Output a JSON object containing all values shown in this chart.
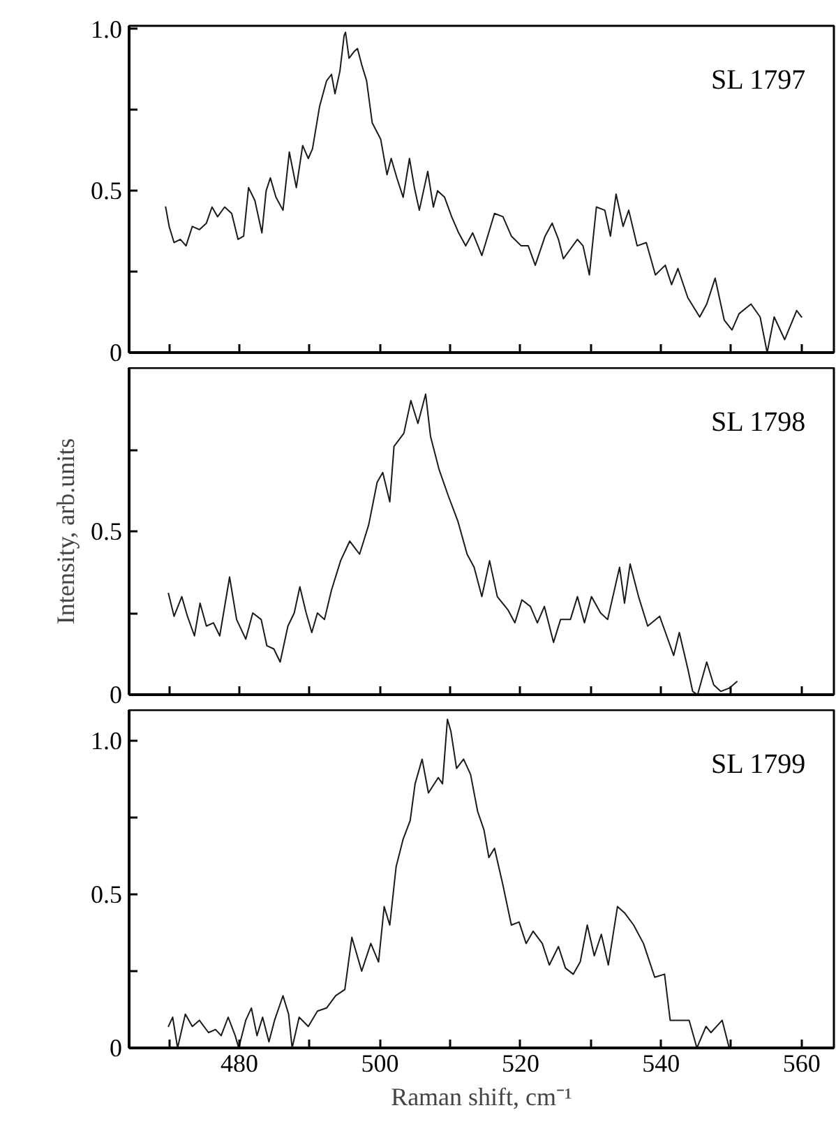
{
  "chart_data": [
    {
      "type": "line",
      "annotations": [
        "SL 1797"
      ],
      "tick_labels": "y",
      "grid": false,
      "x": [
        469.5,
        470,
        470.7,
        471.6,
        472.4,
        473.3,
        474.3,
        475.3,
        476.1,
        476.9,
        477.9,
        478.9,
        479.8,
        480.6,
        481.3,
        482.2,
        483.2,
        483.8,
        484.4,
        485.2,
        486.2,
        487.1,
        488.1,
        489,
        489.8,
        490.4,
        491.4,
        492.4,
        493.1,
        493.6,
        494.3,
        494.9,
        495.1,
        495.6,
        496.3,
        496.8,
        497.4,
        498.1,
        498.9,
        500.1,
        501,
        501.6,
        502.4,
        503.3,
        504.2,
        504.9,
        505.6,
        506.8,
        507.6,
        508.2,
        509.2,
        510.2,
        511.2,
        512.2,
        513.2,
        514.5,
        516.3,
        517.5,
        518.7,
        520.1,
        521.1,
        522.1,
        523.5,
        524.5,
        525.4,
        526.1,
        527.1,
        528.1,
        528.9,
        529.8,
        530.8,
        532,
        532.8,
        533.6,
        534.6,
        535.4,
        536.6,
        537.9,
        539.2,
        540.6,
        541.5,
        542.4,
        543.8,
        545.5,
        546.5,
        547.7,
        549,
        550.1,
        551.1,
        552.8,
        554.1,
        555.1,
        556.1,
        557.6,
        559.3,
        560
      ],
      "series": [
        {
          "color": "#1a1a1a",
          "values": [
            0.45,
            0.39,
            0.34,
            0.35,
            0.33,
            0.39,
            0.38,
            0.4,
            0.45,
            0.42,
            0.45,
            0.43,
            0.35,
            0.36,
            0.51,
            0.47,
            0.37,
            0.5,
            0.54,
            0.48,
            0.44,
            0.62,
            0.51,
            0.64,
            0.6,
            0.63,
            0.76,
            0.84,
            0.86,
            0.8,
            0.87,
            0.98,
            0.99,
            0.91,
            0.93,
            0.94,
            0.89,
            0.84,
            0.71,
            0.66,
            0.55,
            0.6,
            0.54,
            0.48,
            0.6,
            0.51,
            0.44,
            0.56,
            0.45,
            0.5,
            0.48,
            0.42,
            0.37,
            0.33,
            0.37,
            0.3,
            0.43,
            0.42,
            0.36,
            0.33,
            0.33,
            0.27,
            0.36,
            0.4,
            0.35,
            0.29,
            0.32,
            0.35,
            0.33,
            0.24,
            0.45,
            0.44,
            0.36,
            0.49,
            0.39,
            0.44,
            0.33,
            0.34,
            0.24,
            0.27,
            0.21,
            0.26,
            0.17,
            0.11,
            0.15,
            0.23,
            0.1,
            0.07,
            0.12,
            0.15,
            0.11,
            0,
            0.11,
            0.04,
            0.13,
            0.11
          ]
        }
      ],
      "xlim": [
        464.3,
        564.6
      ],
      "ylim": [
        0,
        1.01
      ],
      "xticks": [
        {
          "value": 470,
          "label": null
        },
        480,
        {
          "value": 490,
          "label": null
        },
        500,
        {
          "value": 510,
          "label": null
        },
        520,
        {
          "value": 530,
          "label": null
        },
        540,
        {
          "value": 550,
          "label": null
        },
        560
      ],
      "yticks": [
        0,
        {
          "value": 0.25,
          "label": null
        },
        0.5,
        {
          "value": 0.75,
          "label": null
        },
        {
          "value": 1,
          "label": "1.0"
        }
      ]
    },
    {
      "type": "line",
      "annotations": [
        "SL 1798"
      ],
      "tick_labels": "y",
      "grid": false,
      "ylabel": "Intensity, arb.units",
      "x": [
        469.9,
        470.7,
        471.8,
        472.6,
        473.6,
        474.4,
        475.3,
        476.3,
        477.2,
        478.6,
        479.6,
        480.9,
        481.9,
        483.1,
        483.9,
        484.9,
        485.8,
        486.9,
        487.8,
        488.6,
        489.5,
        490.3,
        491.1,
        492.1,
        493.1,
        494.4,
        495.7,
        497.1,
        498.4,
        499.6,
        500.4,
        501.4,
        502,
        503.4,
        504.4,
        505.4,
        506.5,
        507.2,
        508.4,
        509.7,
        511.1,
        512.4,
        513.4,
        514.5,
        515.6,
        516.7,
        518.2,
        519.2,
        520.2,
        521.4,
        522.4,
        523.4,
        524.7,
        525.7,
        527.1,
        528.1,
        529.1,
        530.1,
        531.4,
        532.4,
        534.1,
        534.8,
        535.6,
        536.8,
        538.1,
        539.8,
        540.8,
        541.8,
        542.6,
        543.8,
        544.5,
        545.2,
        546.5,
        547.5,
        548.5,
        549.7,
        550.8
      ],
      "series": [
        {
          "color": "#1a1a1a",
          "values": [
            0.31,
            0.24,
            0.3,
            0.24,
            0.18,
            0.28,
            0.21,
            0.22,
            0.18,
            0.36,
            0.23,
            0.17,
            0.25,
            0.23,
            0.15,
            0.14,
            0.1,
            0.21,
            0.25,
            0.33,
            0.25,
            0.19,
            0.25,
            0.23,
            0.32,
            0.41,
            0.47,
            0.43,
            0.52,
            0.65,
            0.68,
            0.59,
            0.76,
            0.8,
            0.9,
            0.83,
            0.92,
            0.79,
            0.69,
            0.61,
            0.53,
            0.43,
            0.39,
            0.3,
            0.41,
            0.3,
            0.26,
            0.22,
            0.29,
            0.27,
            0.22,
            0.27,
            0.16,
            0.23,
            0.23,
            0.3,
            0.22,
            0.3,
            0.25,
            0.23,
            0.39,
            0.28,
            0.4,
            0.3,
            0.21,
            0.24,
            0.18,
            0.12,
            0.19,
            0.08,
            0.01,
            0,
            0.1,
            0.03,
            0.01,
            0.02,
            0.04
          ]
        }
      ],
      "xlim": [
        464.3,
        564.6
      ],
      "ylim": [
        0,
        1.0
      ],
      "xticks": [
        {
          "value": 470,
          "label": null
        },
        480,
        {
          "value": 490,
          "label": null
        },
        500,
        {
          "value": 510,
          "label": null
        },
        520,
        {
          "value": 530,
          "label": null
        },
        540,
        {
          "value": 550,
          "label": null
        },
        560
      ],
      "yticks": [
        0,
        {
          "value": 0.25,
          "label": null
        },
        0.5,
        {
          "value": 0.75,
          "label": null
        }
      ]
    },
    {
      "type": "line",
      "annotations": [
        "SL 1799"
      ],
      "grid": false,
      "xlabel": "Raman shift, cm⁻¹",
      "x": [
        469.9,
        470.5,
        471.2,
        472.3,
        473.3,
        474.3,
        475.6,
        476.6,
        477.4,
        478.4,
        479.4,
        479.9,
        480.9,
        481.7,
        482.5,
        483.3,
        484.2,
        485,
        486.2,
        487,
        487.5,
        488.5,
        489.8,
        491.1,
        492.4,
        493.7,
        495,
        496,
        497.4,
        498.7,
        499.8,
        500.6,
        501.4,
        502.3,
        503.3,
        504.3,
        505,
        506,
        506.9,
        508.3,
        508.9,
        509.6,
        510.1,
        510.9,
        511.9,
        512.9,
        513.9,
        514.8,
        515.5,
        516.3,
        517.5,
        518.7,
        519.8,
        520.8,
        521.8,
        523.1,
        524.1,
        525.4,
        526.4,
        527.5,
        528.5,
        529.5,
        530.5,
        531.5,
        532.5,
        533.8,
        534.8,
        536.1,
        537.5,
        539.1,
        540.5,
        541.3,
        542.5,
        544,
        545.1,
        546.4,
        547.1,
        548.7,
        549.7
      ],
      "series": [
        {
          "color": "#1a1a1a",
          "values": [
            0.07,
            0.1,
            0,
            0.11,
            0.07,
            0.09,
            0.05,
            0.06,
            0.04,
            0.1,
            0.04,
            0,
            0.09,
            0.13,
            0.04,
            0.1,
            0.02,
            0.09,
            0.17,
            0.11,
            0,
            0.1,
            0.07,
            0.12,
            0.13,
            0.17,
            0.19,
            0.36,
            0.25,
            0.34,
            0.28,
            0.46,
            0.4,
            0.59,
            0.68,
            0.74,
            0.86,
            0.94,
            0.83,
            0.88,
            0.86,
            1.07,
            1.03,
            0.91,
            0.94,
            0.89,
            0.77,
            0.71,
            0.62,
            0.65,
            0.53,
            0.4,
            0.41,
            0.34,
            0.38,
            0.34,
            0.27,
            0.33,
            0.26,
            0.24,
            0.28,
            0.4,
            0.3,
            0.37,
            0.27,
            0.46,
            0.44,
            0.4,
            0.34,
            0.23,
            0.24,
            0.09,
            0.09,
            0.09,
            0,
            0.07,
            0.05,
            0.09,
            0
          ]
        }
      ],
      "xlim": [
        464.3,
        564.6
      ],
      "ylim": [
        0,
        1.1
      ],
      "xticks": [
        {
          "value": 470,
          "label": null
        },
        480,
        {
          "value": 490,
          "label": null
        },
        500,
        {
          "value": 510,
          "label": null
        },
        520,
        {
          "value": 530,
          "label": null
        },
        540,
        {
          "value": 550,
          "label": null
        },
        560
      ],
      "yticks": [
        0,
        {
          "value": 0.25,
          "label": null
        },
        0.5,
        {
          "value": 0.75,
          "label": null
        },
        {
          "value": 1,
          "label": "1.0"
        }
      ]
    }
  ]
}
